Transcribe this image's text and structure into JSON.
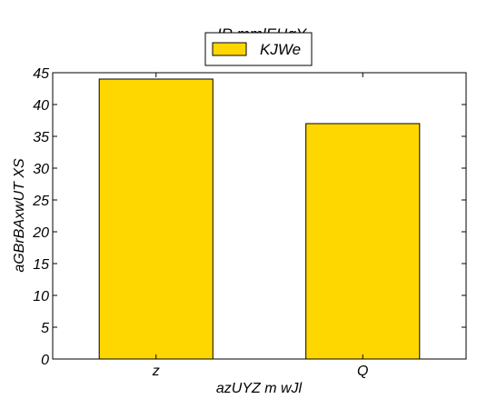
{
  "chart_data": {
    "type": "bar",
    "title": "IR mmlEHqY",
    "xlabel": "azUYZ m wJl",
    "ylabel": "aGBrBAxwUT XS",
    "categories": [
      "z",
      "Q"
    ],
    "series": [
      {
        "name": "KJWe",
        "values": [
          44,
          37
        ],
        "color": "#FFD700"
      }
    ],
    "ylim": [
      0,
      45
    ],
    "yticks": [
      "0",
      "5",
      "10",
      "15",
      "20",
      "25",
      "30",
      "35",
      "40",
      "45"
    ],
    "grid": false,
    "legend_position": "top-center"
  }
}
